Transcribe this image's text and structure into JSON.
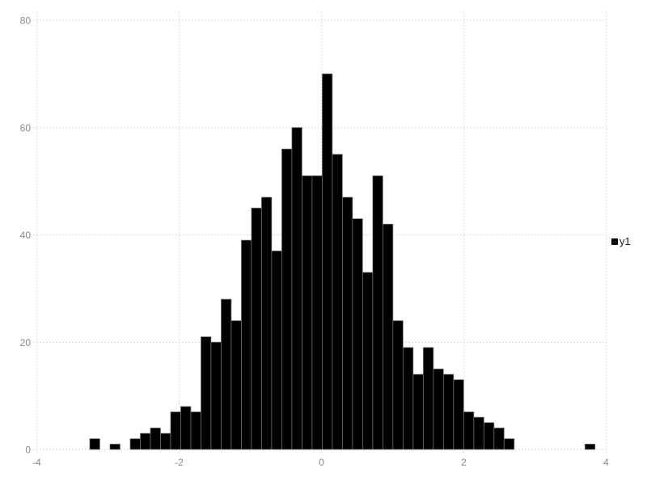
{
  "chart_data": {
    "type": "bar",
    "subtype": "histogram",
    "title": "",
    "xlabel": "",
    "ylabel": "",
    "series": [
      {
        "name": "y1",
        "bin_start": -3.256,
        "bin_width": 0.142,
        "counts": [
          2,
          0,
          1,
          0,
          2,
          3,
          4,
          3,
          7,
          8,
          7,
          21,
          20,
          28,
          24,
          39,
          45,
          47,
          37,
          56,
          60,
          51,
          51,
          70,
          55,
          47,
          43,
          33,
          51,
          42,
          24,
          19,
          14,
          19,
          15,
          14,
          13,
          7,
          6,
          5,
          4,
          2,
          0,
          0,
          0,
          0,
          0,
          0,
          0,
          1
        ]
      }
    ],
    "total_samples": 1000,
    "x_ticks": [
      -4,
      -2,
      0,
      2,
      4
    ],
    "y_ticks": [
      0,
      20,
      40,
      60,
      80
    ],
    "xlim": [
      -4.2,
      4.2
    ],
    "ylim": [
      0,
      80
    ],
    "grid": "dotted",
    "legend_position": "right-middle"
  },
  "colors": {
    "background": "#ffffff",
    "bar_fill": "#000000",
    "bar_edge": "#77777d",
    "grid": "#ccccda",
    "tick_label": "#888888",
    "legend_text": "#1c1c1c",
    "legend_swatch": "#0a0a0a"
  }
}
